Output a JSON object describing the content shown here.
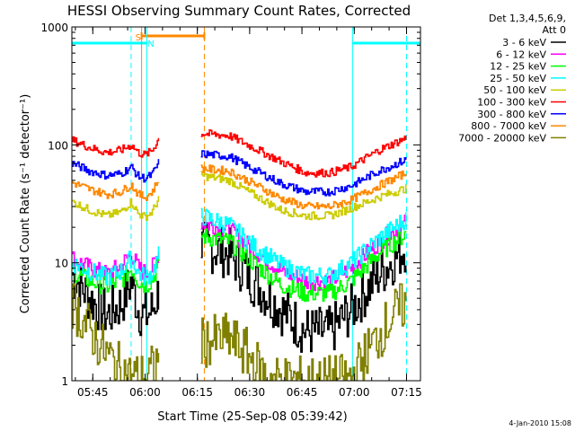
{
  "chart_data": {
    "type": "line",
    "title": "HESSI Observing Summary Count Rates, Corrected",
    "xlabel": "Start Time (25-Sep-08 05:39:42)",
    "ylabel": "Corrected Count Rate (s⁻¹ detector⁻¹)",
    "yscale": "log",
    "ylim": [
      1,
      1000
    ],
    "xlim_minutes_after_0539": [
      0,
      100
    ],
    "yticks": [
      {
        "label": "1000",
        "value": 1000
      },
      {
        "label": "100",
        "value": 100
      },
      {
        "label": "10",
        "value": 10
      },
      {
        "label": "1",
        "value": 1
      }
    ],
    "xticks": [
      {
        "label": "05:45",
        "t": 6
      },
      {
        "label": "06:00",
        "t": 21
      },
      {
        "label": "06:15",
        "t": 36
      },
      {
        "label": "06:30",
        "t": 51
      },
      {
        "label": "06:45",
        "t": 66
      },
      {
        "label": "07:00",
        "t": 81
      },
      {
        "label": "07:15",
        "t": 96
      }
    ],
    "legend": {
      "placement": "right",
      "header_line1": "Det 1,3,4,5,6,9,",
      "header_line2": "Att 0"
    },
    "series": [
      {
        "name": "3 - 6 keV",
        "color": "#000000",
        "seg1": [
          [
            0,
            8
          ],
          [
            5,
            5
          ],
          [
            10,
            3.6
          ],
          [
            14,
            4.5
          ],
          [
            17,
            7
          ],
          [
            19,
            4
          ],
          [
            21,
            3.5
          ],
          [
            23,
            4
          ],
          [
            25,
            6
          ]
        ],
        "seg2": [
          [
            37,
            14
          ],
          [
            45,
            12
          ],
          [
            52,
            7
          ],
          [
            60,
            4
          ],
          [
            67,
            2.6
          ],
          [
            74,
            2.6
          ],
          [
            80,
            4
          ],
          [
            88,
            8
          ],
          [
            96,
            14
          ]
        ]
      },
      {
        "name": "6 - 12 keV",
        "color": "#ff00ff",
        "seg1": [
          [
            0,
            11
          ],
          [
            5,
            9
          ],
          [
            10,
            8
          ],
          [
            14,
            9.5
          ],
          [
            17,
            12
          ],
          [
            19,
            9
          ],
          [
            21,
            8.2
          ],
          [
            23,
            9
          ],
          [
            25,
            13
          ]
        ],
        "seg2": [
          [
            37,
            22
          ],
          [
            45,
            19
          ],
          [
            52,
            13
          ],
          [
            60,
            8.5
          ],
          [
            67,
            7
          ],
          [
            74,
            7
          ],
          [
            80,
            9
          ],
          [
            88,
            15
          ],
          [
            96,
            22
          ]
        ]
      },
      {
        "name": "12 - 25 keV",
        "color": "#00ff00",
        "seg1": [
          [
            0,
            8.5
          ],
          [
            5,
            7
          ],
          [
            10,
            6.3
          ],
          [
            14,
            7
          ],
          [
            17,
            9
          ],
          [
            19,
            7
          ],
          [
            21,
            6.4
          ],
          [
            23,
            7.2
          ],
          [
            25,
            10
          ]
        ],
        "seg2": [
          [
            37,
            17
          ],
          [
            45,
            15
          ],
          [
            52,
            10
          ],
          [
            60,
            6.5
          ],
          [
            67,
            5.5
          ],
          [
            74,
            5.5
          ],
          [
            80,
            7
          ],
          [
            88,
            12
          ],
          [
            96,
            18
          ]
        ]
      },
      {
        "name": "25 - 50 keV",
        "color": "#00ffff",
        "seg1": [
          [
            0,
            10
          ],
          [
            5,
            8.5
          ],
          [
            10,
            7.5
          ],
          [
            14,
            8.5
          ],
          [
            17,
            11
          ],
          [
            19,
            8.2
          ],
          [
            21,
            7.5
          ],
          [
            23,
            8.3
          ],
          [
            25,
            12
          ]
        ],
        "seg2": [
          [
            37,
            25
          ],
          [
            45,
            21
          ],
          [
            52,
            14
          ],
          [
            60,
            9.5
          ],
          [
            67,
            7.8
          ],
          [
            74,
            7.8
          ],
          [
            80,
            10
          ],
          [
            88,
            16
          ],
          [
            96,
            24
          ]
        ]
      },
      {
        "name": "50 - 100 keV",
        "color": "#cccc00",
        "seg1": [
          [
            0,
            33
          ],
          [
            5,
            28
          ],
          [
            10,
            25
          ],
          [
            14,
            27
          ],
          [
            17,
            33
          ],
          [
            19,
            26
          ],
          [
            21,
            24.5
          ],
          [
            23,
            27
          ],
          [
            25,
            36
          ]
        ],
        "seg2": [
          [
            37,
            55
          ],
          [
            45,
            50
          ],
          [
            52,
            38
          ],
          [
            60,
            28
          ],
          [
            67,
            25
          ],
          [
            74,
            25
          ],
          [
            80,
            29
          ],
          [
            88,
            36
          ],
          [
            96,
            43
          ]
        ]
      },
      {
        "name": "100 - 300 keV",
        "color": "#ff0000",
        "seg1": [
          [
            0,
            110
          ],
          [
            5,
            95
          ],
          [
            10,
            86
          ],
          [
            14,
            90
          ],
          [
            17,
            100
          ],
          [
            19,
            86
          ],
          [
            21,
            82
          ],
          [
            23,
            90
          ],
          [
            25,
            115
          ]
        ],
        "seg2": [
          [
            37,
            125
          ],
          [
            45,
            120
          ],
          [
            52,
            95
          ],
          [
            60,
            72
          ],
          [
            67,
            58
          ],
          [
            74,
            58
          ],
          [
            80,
            65
          ],
          [
            88,
            90
          ],
          [
            96,
            115
          ]
        ]
      },
      {
        "name": "300 - 800 keV",
        "color": "#0000ff",
        "seg1": [
          [
            0,
            70
          ],
          [
            5,
            60
          ],
          [
            10,
            55
          ],
          [
            14,
            57
          ],
          [
            17,
            65
          ],
          [
            19,
            54
          ],
          [
            21,
            52
          ],
          [
            23,
            56
          ],
          [
            25,
            72
          ]
        ],
        "seg2": [
          [
            37,
            84
          ],
          [
            45,
            80
          ],
          [
            52,
            62
          ],
          [
            60,
            47
          ],
          [
            67,
            40
          ],
          [
            74,
            40
          ],
          [
            80,
            45
          ],
          [
            88,
            60
          ],
          [
            96,
            75
          ]
        ]
      },
      {
        "name": "800 - 7000 keV",
        "color": "#ff8800",
        "seg1": [
          [
            0,
            48
          ],
          [
            5,
            42
          ],
          [
            10,
            38
          ],
          [
            14,
            40
          ],
          [
            17,
            46
          ],
          [
            19,
            38
          ],
          [
            21,
            36
          ],
          [
            23,
            40
          ],
          [
            25,
            52
          ]
        ],
        "seg2": [
          [
            37,
            63
          ],
          [
            45,
            60
          ],
          [
            52,
            47
          ],
          [
            60,
            35
          ],
          [
            67,
            30
          ],
          [
            74,
            30
          ],
          [
            80,
            34
          ],
          [
            88,
            45
          ],
          [
            96,
            58
          ]
        ]
      },
      {
        "name": "7000 - 20000 keV",
        "color": "#808000",
        "seg1": [
          [
            0,
            4.5
          ],
          [
            4,
            3
          ],
          [
            8,
            2
          ],
          [
            12,
            1.4
          ],
          [
            16,
            1.1
          ],
          [
            21,
            1.05
          ],
          [
            25,
            1.5
          ]
        ],
        "seg2": [
          [
            37,
            2.1
          ],
          [
            45,
            2.3
          ],
          [
            50,
            1.7
          ],
          [
            56,
            1.05
          ],
          [
            62,
            1.0
          ],
          [
            74,
            1.0
          ],
          [
            80,
            1.05
          ],
          [
            86,
            2
          ],
          [
            92,
            3.6
          ],
          [
            96,
            4.6
          ]
        ]
      }
    ],
    "annotations": [
      {
        "text": "S",
        "color": "#ff8800"
      },
      {
        "text": "N",
        "color": "#00ffff"
      }
    ],
    "footer_date": "4-Jan-2010 15:08"
  },
  "colors": {
    "eclipse": "#00ffff",
    "saa": "#ff8800"
  }
}
